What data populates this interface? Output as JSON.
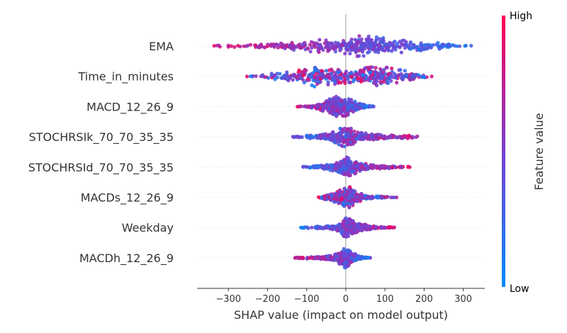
{
  "chart_data": {
    "type": "scatter",
    "subtype": "beeswarm",
    "title": "",
    "xlabel": "SHAP value (impact on model output)",
    "xlim": [
      -380,
      355
    ],
    "xticks": [
      -300,
      -200,
      -100,
      0,
      100,
      200,
      300
    ],
    "xtick_labels": [
      "−300",
      "−200",
      "−100",
      "0",
      "100",
      "200",
      "300"
    ],
    "features": [
      {
        "name": "EMA",
        "min": -350,
        "max": 330,
        "low_side": "right",
        "mix": 0.35,
        "density": [
          [
            -330,
            0.5
          ],
          [
            -250,
            1.5
          ],
          [
            -150,
            3
          ],
          [
            -60,
            5
          ],
          [
            0,
            6
          ],
          [
            20,
            8
          ],
          [
            60,
            7.5
          ],
          [
            120,
            5.5
          ],
          [
            200,
            3.5
          ],
          [
            280,
            1.5
          ],
          [
            330,
            0.5
          ]
        ]
      },
      {
        "name": "Time_in_minutes",
        "min": -255,
        "max": 225,
        "low_side": "mixed",
        "mix": 0.9,
        "density": [
          [
            -250,
            0.5
          ],
          [
            -200,
            2
          ],
          [
            -140,
            4
          ],
          [
            -80,
            9
          ],
          [
            -40,
            7
          ],
          [
            0,
            6
          ],
          [
            20,
            5
          ],
          [
            60,
            8
          ],
          [
            100,
            8
          ],
          [
            150,
            5
          ],
          [
            200,
            2
          ],
          [
            225,
            0.5
          ]
        ]
      },
      {
        "name": "MACD_12_26_9",
        "min": -125,
        "max": 75,
        "low_side": "right",
        "mix": 0.5,
        "density": [
          [
            -125,
            0.5
          ],
          [
            -90,
            1
          ],
          [
            -60,
            4
          ],
          [
            -30,
            10
          ],
          [
            0,
            9
          ],
          [
            30,
            4
          ],
          [
            60,
            1
          ],
          [
            75,
            0.5
          ]
        ]
      },
      {
        "name": "STOCHRSIk_70_70_35_35",
        "min": -140,
        "max": 210,
        "low_side": "left",
        "mix": 0.55,
        "density": [
          [
            -140,
            0.5
          ],
          [
            -80,
            1.5
          ],
          [
            -40,
            3
          ],
          [
            -10,
            8
          ],
          [
            5,
            9
          ],
          [
            30,
            4
          ],
          [
            80,
            2
          ],
          [
            150,
            1.5
          ],
          [
            210,
            0.3
          ]
        ]
      },
      {
        "name": "STOCHRSId_70_70_35_35",
        "min": -115,
        "max": 170,
        "low_side": "left",
        "mix": 0.5,
        "density": [
          [
            -115,
            0.5
          ],
          [
            -60,
            1.5
          ],
          [
            -20,
            4
          ],
          [
            0,
            9
          ],
          [
            20,
            6
          ],
          [
            60,
            2
          ],
          [
            120,
            1
          ],
          [
            170,
            0.3
          ]
        ]
      },
      {
        "name": "MACDs_12_26_9",
        "min": -75,
        "max": 130,
        "low_side": "right",
        "mix": 0.85,
        "density": [
          [
            -75,
            0.3
          ],
          [
            -40,
            2.5
          ],
          [
            -10,
            7
          ],
          [
            10,
            9
          ],
          [
            30,
            4
          ],
          [
            60,
            1.5
          ],
          [
            100,
            0.8
          ],
          [
            130,
            0.3
          ]
        ]
      },
      {
        "name": "Weekday",
        "min": -115,
        "max": 125,
        "low_side": "left",
        "mix": 0.45,
        "density": [
          [
            -115,
            0.3
          ],
          [
            -60,
            1.2
          ],
          [
            -20,
            2.5
          ],
          [
            0,
            8
          ],
          [
            20,
            5
          ],
          [
            60,
            1.5
          ],
          [
            100,
            0.8
          ],
          [
            125,
            0.3
          ]
        ]
      },
      {
        "name": "MACDh_12_26_9",
        "min": -130,
        "max": 65,
        "low_side": "right",
        "mix": 0.5,
        "density": [
          [
            -130,
            0.3
          ],
          [
            -80,
            1
          ],
          [
            -30,
            2
          ],
          [
            0,
            8
          ],
          [
            15,
            4
          ],
          [
            40,
            1
          ],
          [
            65,
            0.3
          ]
        ]
      }
    ],
    "colorbar": {
      "label": "Feature value",
      "high": "High",
      "low": "Low",
      "low_color": "#008bfb",
      "high_color": "#ff0052"
    },
    "grid": false
  }
}
